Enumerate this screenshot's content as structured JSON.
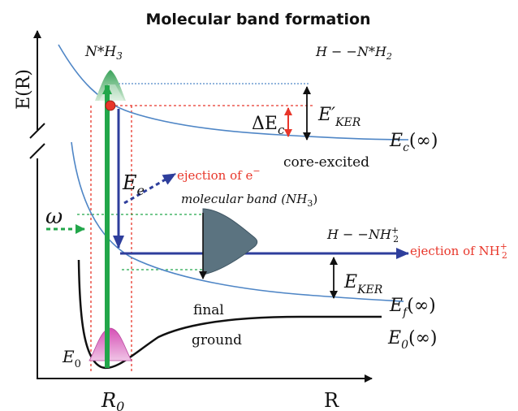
{
  "title": "Molecular band formation",
  "axes": {
    "y_label": "E(R)",
    "x_label": "R",
    "x_tick": "R",
    "x_tick_sub": "0"
  },
  "labels": {
    "n_star_h3": "N*H",
    "n_star_h3_sub": "3",
    "h_n_star_h2_a": "H − −N*H",
    "h_n_star_h2_sub": "2",
    "delta_ec_a": "ΔE",
    "delta_ec_sub": "c",
    "e_prime_ker": "E′",
    "e_prime_ker_sub": "KER",
    "ec_inf": "E",
    "ec_inf_sub": "c",
    "ec_inf_tail": "(∞)",
    "core_excited": "core-excited",
    "ejection_e": "ejection of e",
    "ejection_e_sup": "−",
    "ee": "E",
    "ee_sub": "e",
    "molecular_band": "molecular band (NH",
    "molecular_band_sub": "3",
    "molecular_band_tail": ")",
    "omega": "ω",
    "h_nh2_a": "H − −NH",
    "h_nh2_sub": "2",
    "h_nh2_sup": "+",
    "ejection_nh2": "ejection of NH",
    "ejection_nh2_sub": "2",
    "ejection_nh2_sup": "+",
    "e_ker": "E",
    "e_ker_sub": "KER",
    "ef_inf": "E",
    "ef_inf_sub": "f",
    "ef_inf_tail": "(∞)",
    "final": "final",
    "ground": "ground",
    "e0_inf": "E",
    "e0_inf_sub": "0",
    "e0_inf_tail": "(∞)",
    "e0": "E",
    "e0_sub": "0"
  },
  "colors": {
    "curve": "#4f86c6",
    "ground_curve": "#111111",
    "green": "#22a64a",
    "arrow_blue": "#2e3e9c",
    "red": "#e8362a",
    "band_fill": "#5b7380"
  }
}
